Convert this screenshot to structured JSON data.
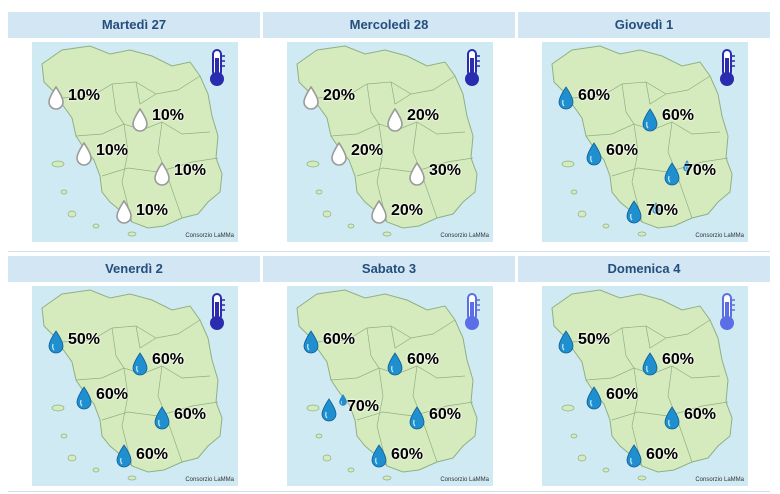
{
  "colors": {
    "header_bg": "#d3e6f3",
    "header_text": "#244f7c",
    "sea": "#cfeaf3",
    "land": "#d6ebbd",
    "border": "#8fb083",
    "thermo_dark": "#2b2bb0",
    "thermo_light": "#5b6ee6",
    "drop_blue": "#1f8fd0",
    "drop_outline": "#9a9a9a"
  },
  "credit": "Consorzio LaMMa",
  "days": [
    {
      "title": "Martedì 27",
      "thermo_icon": "thermometer-dark",
      "zones": [
        {
          "value": "10%",
          "drop": "outline",
          "extra": false
        },
        {
          "value": "10%",
          "drop": "outline",
          "extra": false
        },
        {
          "value": "10%",
          "drop": "outline",
          "extra": false
        },
        {
          "value": "10%",
          "drop": "outline",
          "extra": false
        },
        {
          "value": "10%",
          "drop": "outline",
          "extra": false
        }
      ]
    },
    {
      "title": "Mercoledì 28",
      "thermo_icon": "thermometer-dark",
      "zones": [
        {
          "value": "20%",
          "drop": "outline",
          "extra": false
        },
        {
          "value": "20%",
          "drop": "outline",
          "extra": false
        },
        {
          "value": "20%",
          "drop": "outline",
          "extra": false
        },
        {
          "value": "30%",
          "drop": "outline",
          "extra": false
        },
        {
          "value": "20%",
          "drop": "outline",
          "extra": false
        }
      ]
    },
    {
      "title": "Giovedì 1",
      "thermo_icon": "thermometer-dark",
      "zones": [
        {
          "value": "60%",
          "drop": "blue",
          "extra": false
        },
        {
          "value": "60%",
          "drop": "blue",
          "extra": false
        },
        {
          "value": "60%",
          "drop": "blue",
          "extra": false
        },
        {
          "value": "70%",
          "drop": "blue",
          "extra": true
        },
        {
          "value": "70%",
          "drop": "blue",
          "extra": true
        }
      ]
    },
    {
      "title": "Venerdì 2",
      "thermo_icon": "thermometer-dark",
      "zones": [
        {
          "value": "50%",
          "drop": "blue",
          "extra": false
        },
        {
          "value": "60%",
          "drop": "blue",
          "extra": false
        },
        {
          "value": "60%",
          "drop": "blue",
          "extra": false
        },
        {
          "value": "60%",
          "drop": "blue",
          "extra": false
        },
        {
          "value": "60%",
          "drop": "blue",
          "extra": false
        }
      ]
    },
    {
      "title": "Sabato 3",
      "thermo_icon": "thermometer-light",
      "zones": [
        {
          "value": "60%",
          "drop": "blue",
          "extra": false
        },
        {
          "value": "60%",
          "drop": "blue",
          "extra": false
        },
        {
          "value": "70%",
          "drop": "blue",
          "extra": true
        },
        {
          "value": "60%",
          "drop": "blue",
          "extra": false
        },
        {
          "value": "60%",
          "drop": "blue",
          "extra": false
        }
      ]
    },
    {
      "title": "Domenica 4",
      "thermo_icon": "thermometer-light",
      "zones": [
        {
          "value": "50%",
          "drop": "blue",
          "extra": false
        },
        {
          "value": "60%",
          "drop": "blue",
          "extra": false
        },
        {
          "value": "60%",
          "drop": "blue",
          "extra": false
        },
        {
          "value": "60%",
          "drop": "blue",
          "extra": false
        },
        {
          "value": "60%",
          "drop": "blue",
          "extra": false
        }
      ]
    }
  ]
}
